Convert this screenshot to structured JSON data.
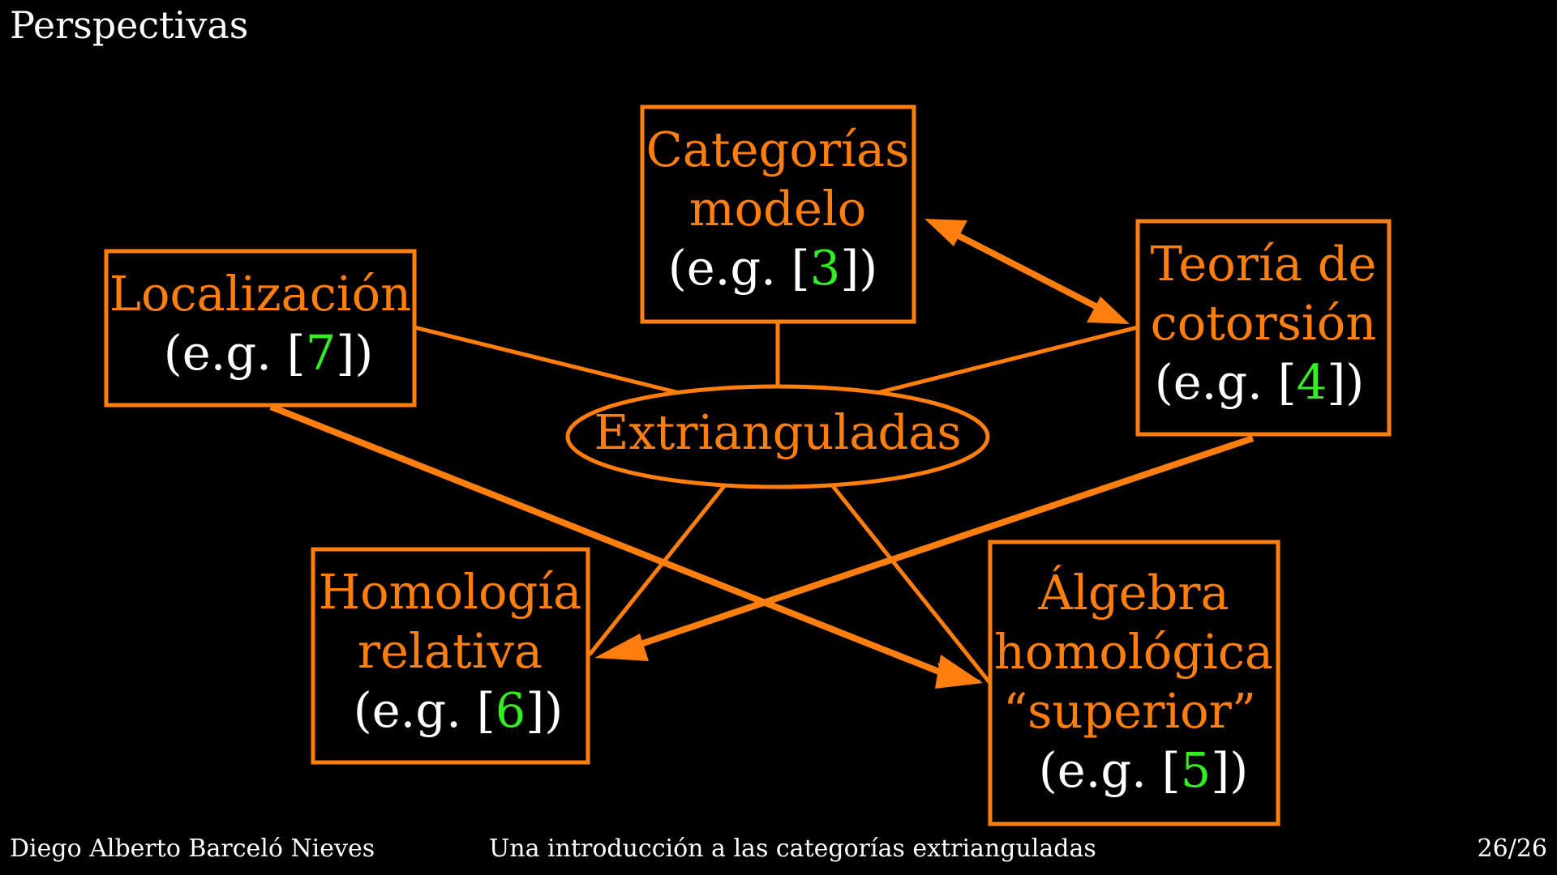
{
  "slide": {
    "title": "Perspectivas"
  },
  "colors": {
    "background": "#000000",
    "node": "#ff7f0e",
    "reference_number": "#33ee22",
    "text": "#ffffff"
  },
  "diagram": {
    "center": {
      "label": "Extrianguladas"
    },
    "nodes": {
      "modelo": {
        "lines": [
          "Categorías",
          "modelo"
        ],
        "ref_prefix": "(e.g. [",
        "ref_num": "3",
        "ref_suffix": "])"
      },
      "localizacion": {
        "lines": [
          "Localización"
        ],
        "ref_prefix": "(e.g. [",
        "ref_num": "7",
        "ref_suffix": "])"
      },
      "cotorsion": {
        "lines": [
          "Teoría de",
          "cotorsión"
        ],
        "ref_prefix": "(e.g. [",
        "ref_num": "4",
        "ref_suffix": "])"
      },
      "homologia": {
        "lines": [
          "Homología",
          "relativa"
        ],
        "ref_prefix": "(e.g. [",
        "ref_num": "6",
        "ref_suffix": "])"
      },
      "algebra": {
        "lines": [
          "Álgebra",
          "homológica",
          "“superior”"
        ],
        "ref_prefix": "(e.g. [",
        "ref_num": "5",
        "ref_suffix": "])"
      }
    },
    "connections": [
      {
        "from": "modelo",
        "to": "cotorsion",
        "kind": "double-arrow"
      },
      {
        "from": "localizacion",
        "to": "algebra",
        "kind": "arrow"
      },
      {
        "from": "cotorsion",
        "to": "homologia",
        "kind": "arrow"
      },
      {
        "from": "center",
        "to": "modelo",
        "kind": "line"
      },
      {
        "from": "center",
        "to": "localizacion",
        "kind": "line"
      },
      {
        "from": "center",
        "to": "cotorsion",
        "kind": "line"
      },
      {
        "from": "center",
        "to": "homologia",
        "kind": "line"
      },
      {
        "from": "center",
        "to": "algebra",
        "kind": "line"
      }
    ]
  },
  "footer": {
    "author": "Diego Alberto Barceló Nieves",
    "talk_title": "Una introducción a las categorías extrianguladas",
    "page": "26/26"
  }
}
